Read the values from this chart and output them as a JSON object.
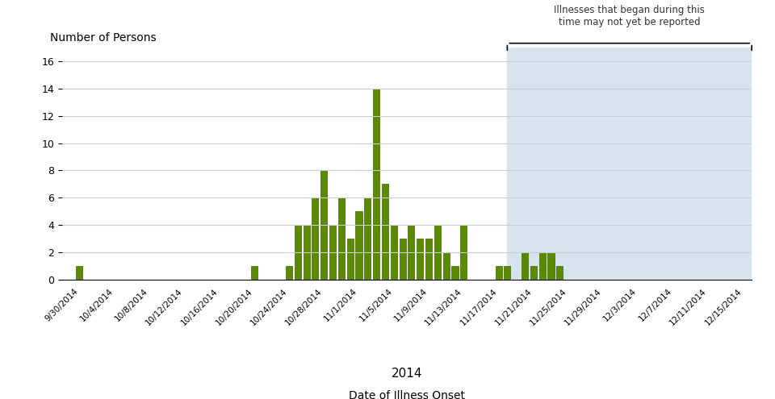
{
  "title_ylabel": "Number of Persons",
  "xlabel_year": "2014",
  "xlabel_label": "Date of Illness Onset",
  "bar_color": "#5a8a00",
  "bar_edge_color": "#3d6200",
  "background_color": "#ffffff",
  "shade_color": "#d6e4f0",
  "ylim": [
    0,
    17
  ],
  "yticks": [
    0,
    2,
    4,
    6,
    8,
    10,
    12,
    14,
    16
  ],
  "shade_start_date": "2014-11-18",
  "shade_end_date": "2014-12-16",
  "annotation_text": "Illnesses that began during this\ntime may not yet be reported",
  "dates": [
    "2014-09-30",
    "2014-10-01",
    "2014-10-02",
    "2014-10-03",
    "2014-10-04",
    "2014-10-05",
    "2014-10-06",
    "2014-10-07",
    "2014-10-08",
    "2014-10-09",
    "2014-10-10",
    "2014-10-11",
    "2014-10-12",
    "2014-10-13",
    "2014-10-14",
    "2014-10-15",
    "2014-10-16",
    "2014-10-17",
    "2014-10-18",
    "2014-10-19",
    "2014-10-20",
    "2014-10-21",
    "2014-10-22",
    "2014-10-23",
    "2014-10-24",
    "2014-10-25",
    "2014-10-26",
    "2014-10-27",
    "2014-10-28",
    "2014-10-29",
    "2014-10-30",
    "2014-10-31",
    "2014-11-01",
    "2014-11-02",
    "2014-11-03",
    "2014-11-04",
    "2014-11-05",
    "2014-11-06",
    "2014-11-07",
    "2014-11-08",
    "2014-11-09",
    "2014-11-10",
    "2014-11-11",
    "2014-11-12",
    "2014-11-13",
    "2014-11-14",
    "2014-11-15",
    "2014-11-16",
    "2014-11-17",
    "2014-11-18",
    "2014-11-19",
    "2014-11-20",
    "2014-11-21",
    "2014-11-22",
    "2014-11-23",
    "2014-11-24",
    "2014-11-25",
    "2014-11-26",
    "2014-11-27",
    "2014-11-28",
    "2014-11-29",
    "2014-11-30",
    "2014-12-01",
    "2014-12-02",
    "2014-12-03",
    "2014-12-04",
    "2014-12-05",
    "2014-12-06",
    "2014-12-07",
    "2014-12-08",
    "2014-12-09",
    "2014-12-10",
    "2014-12-11",
    "2014-12-12",
    "2014-12-13",
    "2014-12-14",
    "2014-12-15"
  ],
  "values": [
    1,
    0,
    0,
    0,
    0,
    0,
    0,
    0,
    0,
    0,
    0,
    0,
    0,
    0,
    0,
    0,
    0,
    0,
    0,
    0,
    1,
    0,
    0,
    0,
    1,
    4,
    4,
    6,
    8,
    4,
    6,
    3,
    5,
    6,
    14,
    7,
    4,
    3,
    4,
    3,
    3,
    4,
    2,
    1,
    4,
    0,
    0,
    0,
    1,
    1,
    0,
    2,
    1,
    2,
    2,
    1,
    0,
    0,
    0,
    0,
    0,
    0,
    0,
    0,
    0,
    0,
    0,
    0,
    0,
    0,
    0,
    0,
    0,
    0,
    0,
    0,
    0
  ],
  "xtick_dates": [
    "2014-09-30",
    "2014-10-04",
    "2014-10-08",
    "2014-10-12",
    "2014-10-16",
    "2014-10-20",
    "2014-10-24",
    "2014-10-28",
    "2014-11-01",
    "2014-11-05",
    "2014-11-09",
    "2014-11-13",
    "2014-11-17",
    "2014-11-21",
    "2014-11-25",
    "2014-11-29",
    "2014-12-03",
    "2014-12-07",
    "2014-12-11",
    "2014-12-15"
  ]
}
